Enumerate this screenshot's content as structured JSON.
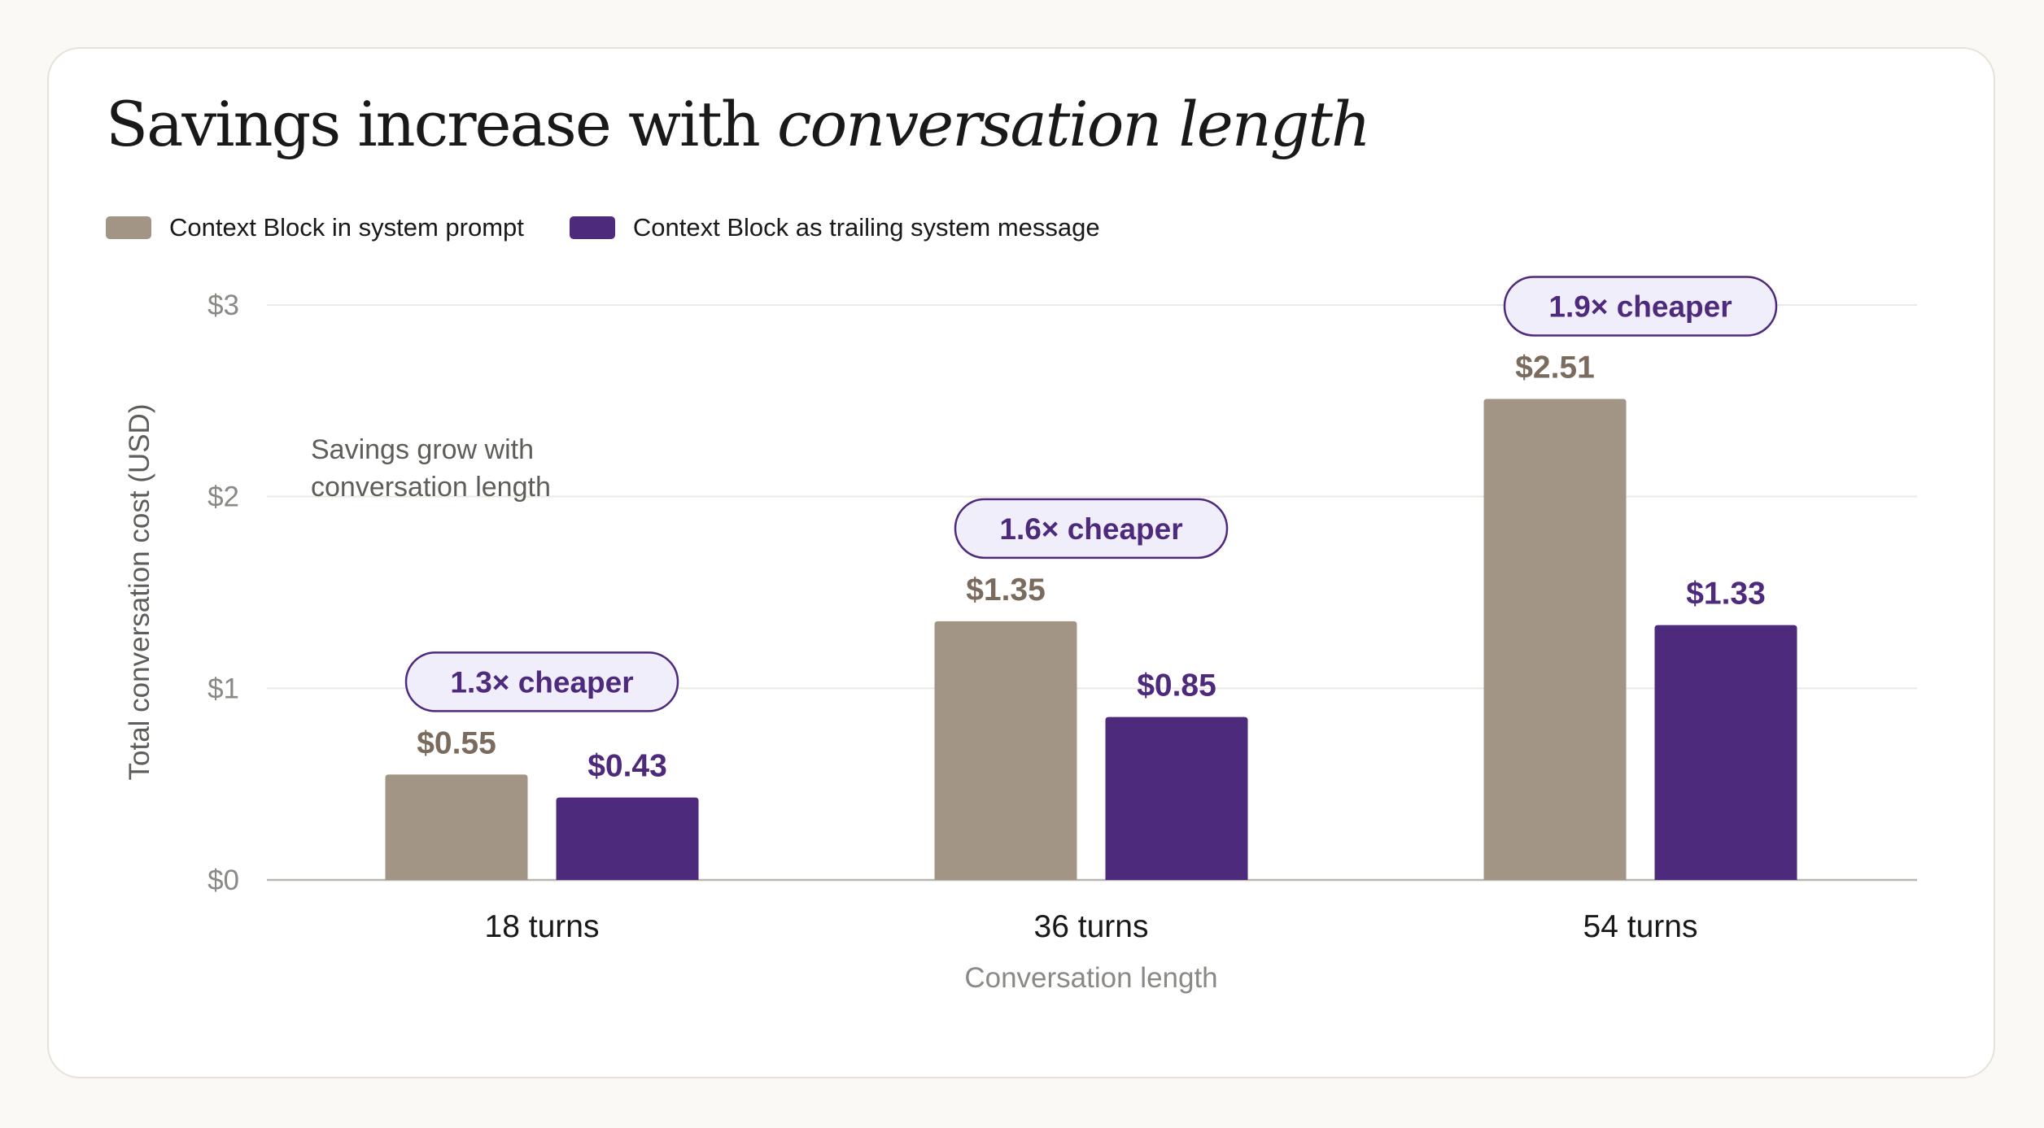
{
  "title": {
    "main": "Savings increase with ",
    "italic": "conversation length"
  },
  "legend": [
    {
      "label": "Context Block in system prompt",
      "color": "#a39585"
    },
    {
      "label": "Context Block as trailing system message",
      "color": "#4e2a7c"
    }
  ],
  "annotation": {
    "line1": "Savings grow with",
    "line2": "conversation length"
  },
  "chart_data": {
    "type": "bar",
    "categories": [
      "18 turns",
      "36 turns",
      "54 turns"
    ],
    "series": [
      {
        "name": "Context Block in system prompt",
        "values": [
          0.55,
          1.35,
          2.51
        ],
        "labels": [
          "$0.55",
          "$1.35",
          "$2.51"
        ],
        "color": "#a39585"
      },
      {
        "name": "Context Block as trailing system message",
        "values": [
          0.43,
          0.85,
          1.33
        ],
        "labels": [
          "$0.43",
          "$0.85",
          "$1.33"
        ],
        "color": "#4e2a7c"
      }
    ],
    "badges": [
      "1.3× cheaper",
      "1.6× cheaper",
      "1.9× cheaper"
    ],
    "xlabel": "Conversation length",
    "ylabel": "Total conversation cost (USD)",
    "ylim": [
      0,
      3
    ],
    "yticks": [
      0,
      1,
      2,
      3
    ],
    "ytick_labels": [
      "$0",
      "$1",
      "$2",
      "$3"
    ],
    "grid": true,
    "legend_position": "top-left"
  }
}
